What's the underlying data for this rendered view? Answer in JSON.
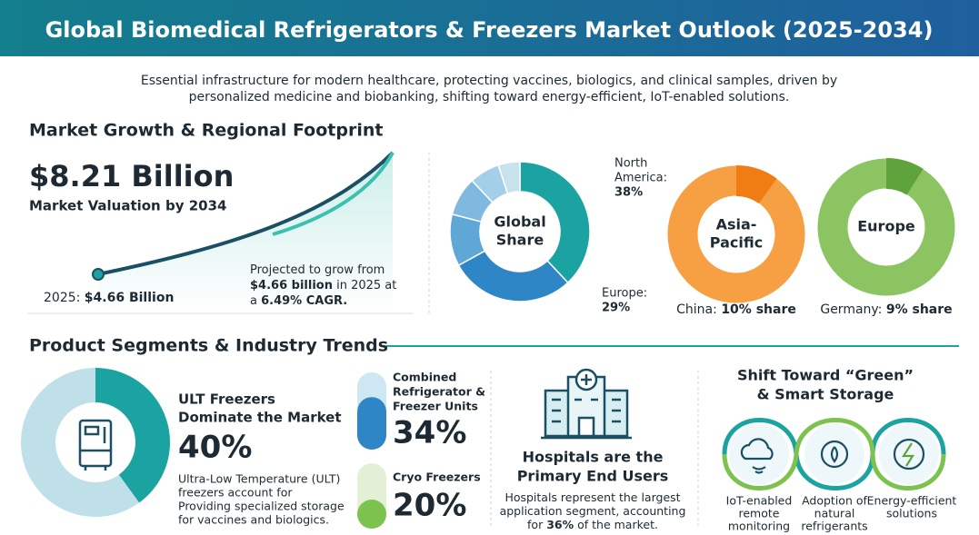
{
  "header": {
    "title": "Global Biomedical Refrigerators & Freezers Market Outlook (2025-2034)",
    "subtitle": [
      "Essential infrastructure for modern healthcare, protecting vaccines, biologics, and clinical samples, driven by",
      "personalized medicine and biobanking, shifting toward energy-efficient, IoT-enabled solutions."
    ]
  },
  "growth": {
    "heading": "Market Growth & Regional Footprint",
    "value": "$8.21 Billion",
    "caption": "Market Valuation by 2034",
    "start": [
      "2025: ",
      "$4.66 Billion"
    ],
    "note": [
      [
        "Projected to grow from"
      ],
      [
        "",
        "$4.66 billion",
        " in 2025 at"
      ],
      [
        "a ",
        "6.49% CAGR."
      ]
    ]
  },
  "regions": {
    "global": {
      "center": [
        "Global",
        "Share"
      ],
      "names": [
        [
          "North",
          "America:"
        ],
        [
          "Europe:"
        ],
        null,
        null,
        null,
        null
      ],
      "values": [
        38,
        29,
        12,
        9,
        7,
        5
      ],
      "value_labels": [
        "38%",
        "29%",
        null,
        null,
        null,
        null
      ],
      "colors": [
        "#1aa3a0",
        "#2f86c6",
        "#5ea7d6",
        "#7fb9df",
        "#a4cfe9",
        "#c9e3ee"
      ]
    },
    "asia": {
      "center": [
        "Asia-",
        "Pacific"
      ],
      "label": [
        "China: ",
        "10% share"
      ],
      "value": 10,
      "colors": [
        "#f7a043",
        "#ef7d14"
      ]
    },
    "europe": {
      "center": [
        "Europe"
      ],
      "label": [
        "Germany: ",
        "9% share"
      ],
      "value": 9,
      "colors": [
        "#8cc462",
        "#5fa33c"
      ]
    }
  },
  "segments": {
    "heading": "Product Segments & Industry Trends",
    "ult": {
      "title": [
        "ULT Freezers",
        "Dominate the Market"
      ],
      "value": 40,
      "value_label": "40%",
      "description": [
        "Ultra-Low Temperature (ULT)",
        "freezers account for",
        "Providing specialized storage",
        "for vaccines and biologics."
      ]
    },
    "combined": {
      "title": [
        "Combined",
        "Refrigerator &",
        "Freezer Units"
      ],
      "value": 34,
      "value_label": "34%"
    },
    "cryo": {
      "title": [
        "Cryo Freezers"
      ],
      "value": 20,
      "value_label": "20%"
    },
    "hospitals": {
      "title": [
        "Hospitals are the",
        "Primary End Users"
      ],
      "description": [
        [
          "Hospitals represent the largest"
        ],
        [
          "application segment, accounting"
        ],
        [
          "for ",
          "36%",
          " of the market."
        ]
      ]
    },
    "green": {
      "title": [
        "Shift Toward “Green”",
        "& Smart Storage"
      ],
      "items": [
        [
          "IoT-enabled",
          "remote",
          "monitoring"
        ],
        [
          "Adoption of",
          "natural",
          "refrigerants"
        ],
        [
          "Energy-efficient",
          "solutions"
        ]
      ]
    }
  }
}
